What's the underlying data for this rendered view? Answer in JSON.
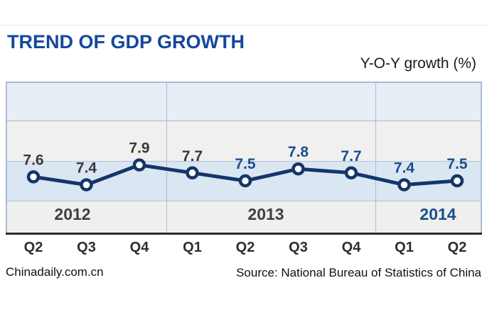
{
  "header": {
    "title": "TREND OF GDP GROWTH",
    "unit_label": "Y-O-Y growth (%)"
  },
  "footer": {
    "site": "Chinadaily.com.cn",
    "source": "Source: National Bureau of Statistics of China"
  },
  "colors": {
    "title_blue": "#15479c",
    "line_navy": "#13366b",
    "value_label_dark": "#3a3a3a",
    "value_label_blue": "#1b4d8e",
    "year_label_dark": "#3f3f3f",
    "year_label_blue": "#1b4d8e",
    "band_light_blue": "#dbe6f3",
    "band_gray": "#f0f1ef",
    "chart_border": "#a9bcd4",
    "axis_dark": "#2c2c2c"
  },
  "chart_data": {
    "type": "line",
    "title": "TREND OF GDP GROWTH",
    "ylabel": "Y-O-Y growth (%)",
    "categories": [
      "Q2 2012",
      "Q3 2012",
      "Q4 2012",
      "Q1 2013",
      "Q2 2013",
      "Q3 2013",
      "Q4 2013",
      "Q1 2014",
      "Q2 2014"
    ],
    "values": [
      7.6,
      7.4,
      7.9,
      7.7,
      7.5,
      7.8,
      7.7,
      7.4,
      7.5
    ],
    "points": [
      {
        "quarter": "Q2",
        "year": "2012",
        "value": 7.6,
        "label_color": "dark"
      },
      {
        "quarter": "Q3",
        "year": "2012",
        "value": 7.4,
        "label_color": "dark"
      },
      {
        "quarter": "Q4",
        "year": "2012",
        "value": 7.9,
        "label_color": "dark"
      },
      {
        "quarter": "Q1",
        "year": "2013",
        "value": 7.7,
        "label_color": "dark"
      },
      {
        "quarter": "Q2",
        "year": "2013",
        "value": 7.5,
        "label_color": "blue"
      },
      {
        "quarter": "Q3",
        "year": "2013",
        "value": 7.8,
        "label_color": "blue"
      },
      {
        "quarter": "Q4",
        "year": "2013",
        "value": 7.7,
        "label_color": "blue"
      },
      {
        "quarter": "Q1",
        "year": "2014",
        "value": 7.4,
        "label_color": "blue"
      },
      {
        "quarter": "Q2",
        "year": "2014",
        "value": 7.5,
        "label_color": "blue"
      }
    ],
    "year_groups": [
      {
        "label": "2012",
        "quarters": [
          "Q2",
          "Q3",
          "Q4"
        ],
        "label_color": "dark"
      },
      {
        "label": "2013",
        "quarters": [
          "Q1",
          "Q2",
          "Q3",
          "Q4"
        ],
        "label_color": "dark"
      },
      {
        "label": "2014",
        "quarters": [
          "Q1",
          "Q2"
        ],
        "label_color": "blue"
      }
    ],
    "gridline_values": [
      7.0,
      8.0,
      9.0
    ],
    "ylim_estimate": [
      6.2,
      10.0
    ],
    "legend": "none",
    "marker": "white circle with navy ring"
  }
}
